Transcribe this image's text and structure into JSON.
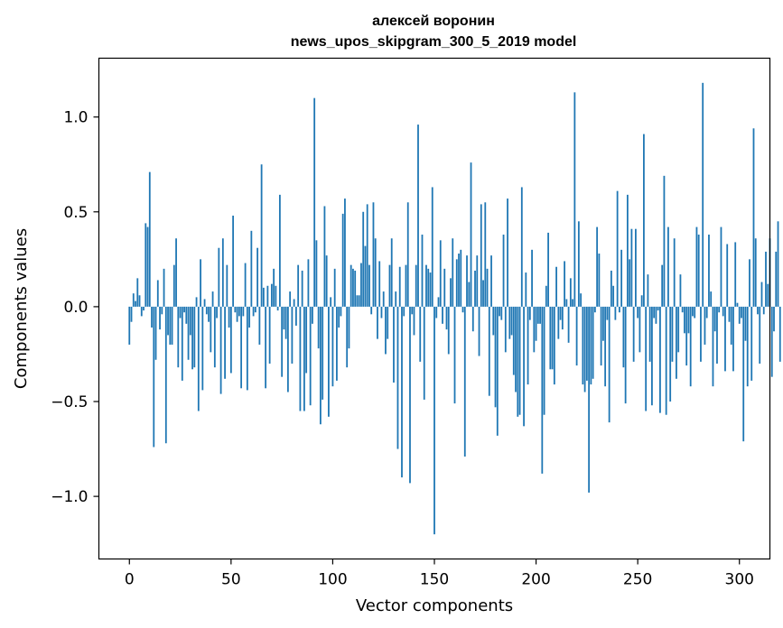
{
  "chart_data": {
    "type": "bar",
    "title": [
      "алексей воронин",
      "news_upos_skipgram_300_5_2019 model"
    ],
    "xlabel": "Vector components",
    "ylabel": "Components values",
    "xlim": [
      -15,
      315
    ],
    "ylim": [
      -1.33,
      1.31
    ],
    "xticks": [
      0,
      50,
      100,
      150,
      200,
      250,
      300
    ],
    "yticks": [
      -1.0,
      -0.5,
      0.0,
      0.5,
      1.0
    ],
    "xtick_labels": [
      "0",
      "50",
      "100",
      "150",
      "200",
      "250",
      "300"
    ],
    "ytick_labels": [
      "−1.0",
      "−0.5",
      "0.0",
      "0.5",
      "1.0"
    ],
    "grid": false,
    "bar_color": "#1f77b4",
    "values": [
      -0.2,
      -0.08,
      0.07,
      0.03,
      0.15,
      0.06,
      -0.05,
      -0.02,
      0.44,
      0.42,
      0.71,
      -0.11,
      -0.74,
      -0.28,
      0.14,
      -0.12,
      -0.04,
      0.2,
      -0.72,
      -0.15,
      -0.2,
      -0.2,
      0.22,
      0.36,
      -0.32,
      -0.06,
      -0.39,
      -0.03,
      -0.09,
      -0.28,
      -0.15,
      -0.33,
      -0.32,
      0.05,
      -0.55,
      0.25,
      -0.44,
      0.04,
      -0.04,
      -0.08,
      -0.24,
      0.08,
      -0.32,
      -0.06,
      0.31,
      -0.46,
      0.36,
      -0.38,
      0.22,
      -0.11,
      -0.35,
      0.48,
      -0.03,
      -0.08,
      -0.05,
      -0.43,
      -0.05,
      0.23,
      -0.44,
      -0.11,
      0.4,
      -0.05,
      -0.03,
      0.31,
      -0.2,
      0.75,
      0.1,
      -0.43,
      0.11,
      -0.3,
      0.12,
      0.2,
      0.11,
      -0.02,
      0.59,
      -0.37,
      -0.12,
      -0.17,
      -0.45,
      0.08,
      -0.3,
      0.04,
      -0.1,
      0.22,
      -0.55,
      0.19,
      -0.55,
      -0.35,
      0.25,
      -0.52,
      -0.09,
      1.1,
      0.35,
      -0.22,
      -0.62,
      -0.49,
      0.53,
      0.27,
      -0.58,
      0.05,
      -0.42,
      0.2,
      -0.39,
      -0.11,
      -0.05,
      0.49,
      0.57,
      -0.32,
      -0.22,
      0.22,
      0.2,
      0.19,
      0.06,
      0.06,
      0.23,
      0.5,
      0.32,
      0.54,
      0.22,
      -0.04,
      0.55,
      0.36,
      -0.17,
      0.24,
      -0.06,
      0.08,
      -0.25,
      -0.17,
      0.22,
      0.36,
      -0.4,
      0.08,
      -0.75,
      0.21,
      -0.9,
      -0.05,
      0.22,
      0.55,
      -0.93,
      -0.04,
      -0.15,
      0.22,
      0.96,
      -0.29,
      0.38,
      -0.49,
      0.22,
      0.2,
      0.18,
      0.63,
      -1.2,
      -0.06,
      0.05,
      0.35,
      -0.09,
      0.2,
      -0.12,
      -0.25,
      0.15,
      0.36,
      -0.51,
      0.25,
      0.28,
      0.3,
      -0.03,
      -0.79,
      0.27,
      0.13,
      0.76,
      -0.13,
      0.19,
      0.27,
      -0.26,
      0.54,
      0.14,
      0.55,
      0.2,
      -0.47,
      0.27,
      -0.15,
      -0.53,
      -0.68,
      -0.05,
      -0.07,
      0.38,
      -0.24,
      0.57,
      -0.17,
      -0.15,
      -0.36,
      -0.45,
      -0.58,
      -0.57,
      0.63,
      -0.63,
      0.18,
      -0.41,
      -0.07,
      0.3,
      -0.24,
      -0.18,
      -0.09,
      -0.09,
      -0.88,
      -0.57,
      0.11,
      0.39,
      -0.33,
      -0.33,
      -0.41,
      0.21,
      -0.17,
      -0.07,
      -0.12,
      0.24,
      0.04,
      -0.19,
      0.15,
      0.04,
      1.13,
      -0.31,
      0.45,
      0.07,
      -0.41,
      -0.45,
      -0.39,
      -0.98,
      -0.41,
      -0.38,
      -0.03,
      0.42,
      0.28,
      -0.31,
      -0.18,
      -0.42,
      -0.07,
      -0.61,
      0.19,
      0.11,
      -0.07,
      0.61,
      -0.03,
      0.3,
      -0.32,
      -0.51,
      0.59,
      0.25,
      0.41,
      -0.29,
      0.41,
      -0.06,
      -0.24,
      0.06,
      0.91,
      -0.55,
      0.17,
      -0.29,
      -0.52,
      -0.06,
      -0.09,
      -0.02,
      -0.56,
      0.22,
      0.69,
      -0.57,
      0.42,
      -0.5,
      -0.29,
      0.36,
      -0.38,
      -0.24,
      0.17,
      -0.03,
      -0.14,
      -0.31,
      -0.14,
      -0.42,
      -0.05,
      -0.06,
      0.42,
      0.38,
      -0.29,
      1.18,
      -0.2,
      -0.06,
      0.38,
      0.08,
      -0.42,
      -0.13,
      -0.3,
      -0.03,
      0.42,
      -0.05,
      -0.34,
      0.33,
      -0.08,
      -0.2,
      -0.34,
      0.34,
      0.02,
      -0.09,
      -0.06,
      -0.71,
      -0.18,
      -0.42,
      0.25,
      -0.39,
      0.94,
      0.36,
      -0.04,
      -0.3,
      0.13,
      -0.04,
      0.29,
      0.12,
      0.36,
      -0.37,
      -0.13,
      0.29,
      0.45,
      -0.29
    ]
  }
}
